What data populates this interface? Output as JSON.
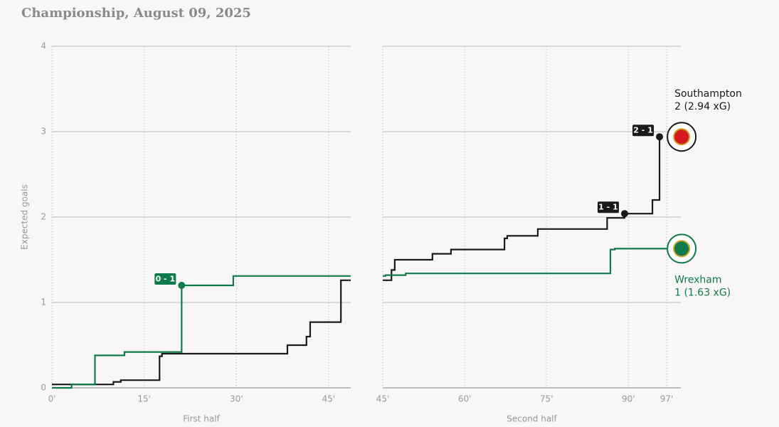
{
  "chart_data": [
    {
      "type": "step",
      "title": "Championship, August 09, 2025",
      "ylabel": "Expected goals",
      "xlabel": "First half",
      "ytick_labels": true,
      "x": [
        0,
        3.2,
        7,
        10,
        11.2,
        11.8,
        17.5,
        17.9,
        21.1,
        29.5,
        38.3,
        41.4,
        42,
        47,
        48.6
      ],
      "series": [
        {
          "name": "Southampton",
          "color": "#1a1a1a",
          "values": [
            0.04,
            0.04,
            0.04,
            0.07,
            0.09,
            0.09,
            0.37,
            0.4,
            0.4,
            0.4,
            0.5,
            0.6,
            0.77,
            1.26,
            1.26
          ]
        },
        {
          "name": "Wrexham",
          "color": "#0f7a4a",
          "values": [
            0,
            0.04,
            0.38,
            0.38,
            0.38,
            0.42,
            0.42,
            0.42,
            1.2,
            1.31,
            1.31,
            1.31,
            1.31,
            1.31,
            1.31
          ]
        }
      ],
      "annotations": [
        {
          "x": 21.1,
          "y": 1.2,
          "text": "0 - 1",
          "color": "#0f7a4a"
        }
      ],
      "xlim": [
        0,
        48.6
      ],
      "ylim": [
        0,
        4
      ],
      "xticks": [
        {
          "value": 0,
          "label": "0'"
        },
        {
          "value": 15,
          "label": "15'"
        },
        {
          "value": 30,
          "label": "30'"
        },
        {
          "value": 45,
          "label": "45'"
        }
      ],
      "yticks": [
        0,
        1,
        2,
        3,
        4
      ],
      "grid": true
    },
    {
      "type": "step",
      "xlabel": "Second half",
      "ytick_labels": false,
      "x": [
        45,
        45.5,
        46.6,
        47.2,
        49.2,
        54.1,
        57.5,
        67.3,
        67.8,
        73.4,
        86.1,
        86.7,
        87.5,
        89.3,
        94.4,
        95.7,
        97.4
      ],
      "series": [
        {
          "name": "Southampton",
          "label": "2 (2.94 xG)",
          "label_pos": "above",
          "color": "#1a1a1a",
          "values": [
            1.26,
            1.26,
            1.38,
            1.5,
            1.5,
            1.57,
            1.62,
            1.75,
            1.78,
            1.86,
            1.99,
            1.99,
            1.99,
            2.04,
            2.2,
            2.94,
            null
          ]
        },
        {
          "name": "Wrexham",
          "label": "1 (1.63 xG)",
          "label_pos": "below",
          "color": "#0f7a4a",
          "values": [
            1.31,
            1.32,
            1.32,
            1.32,
            1.34,
            1.34,
            1.34,
            1.34,
            1.34,
            1.34,
            1.34,
            1.62,
            1.63,
            1.63,
            1.63,
            1.63,
            1.63
          ]
        }
      ],
      "annotations": [
        {
          "x": 89.3,
          "y": 2.04,
          "text": "1 - 1",
          "color": "#1a1a1a"
        },
        {
          "x": 95.7,
          "y": 2.94,
          "text": "2 - 1",
          "color": "#1a1a1a"
        }
      ],
      "xlim": [
        45,
        99.6
      ],
      "ylim": [
        0,
        4
      ],
      "xticks": [
        {
          "value": 45,
          "label": "45'"
        },
        {
          "value": 60,
          "label": "60'"
        },
        {
          "value": 75,
          "label": "75'"
        },
        {
          "value": 90,
          "label": "90'"
        },
        {
          "value": 97,
          "label": "97'"
        }
      ],
      "yticks": [
        0,
        1,
        2,
        3,
        4
      ],
      "grid": true
    }
  ]
}
